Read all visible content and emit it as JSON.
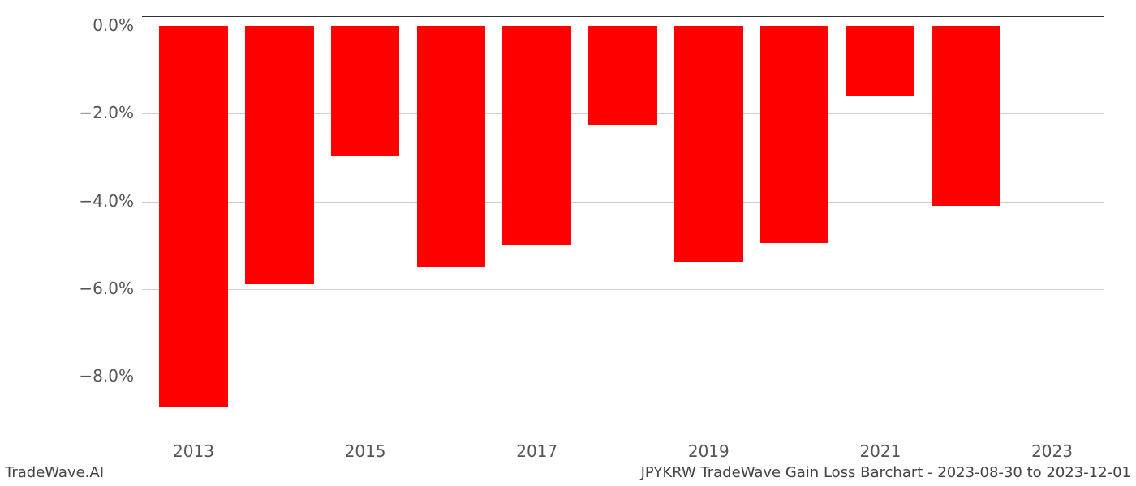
{
  "chart": {
    "type": "bar",
    "years": [
      2013,
      2014,
      2015,
      2016,
      2017,
      2018,
      2019,
      2020,
      2021,
      2022,
      2023
    ],
    "values": [
      -8.7,
      -5.9,
      -2.95,
      -5.5,
      -5.0,
      -2.25,
      -5.4,
      -4.95,
      -1.6,
      -4.1,
      0.0
    ],
    "bar_color": "#ff0000",
    "background_color": "#ffffff",
    "grid_color": "#cccccc",
    "text_color": "#555555",
    "x_range": [
      2012.4,
      2023.6
    ],
    "y_range": [
      -9.4,
      0.2
    ],
    "y_ticks": [
      0.0,
      -2.0,
      -4.0,
      -6.0,
      -8.0
    ],
    "y_tick_labels": [
      "0.0%",
      "−2.0%",
      "−4.0%",
      "−6.0%",
      "−8.0%"
    ],
    "x_ticks": [
      2013,
      2015,
      2017,
      2019,
      2021,
      2023
    ],
    "x_tick_labels": [
      "2013",
      "2015",
      "2017",
      "2019",
      "2021",
      "2023"
    ],
    "bar_width_years": 0.8,
    "label_fontsize": 20,
    "footer_fontsize": 18
  },
  "footer": {
    "left": "TradeWave.AI",
    "right": "JPYKRW TradeWave Gain Loss Barchart - 2023-08-30 to 2023-12-01"
  }
}
